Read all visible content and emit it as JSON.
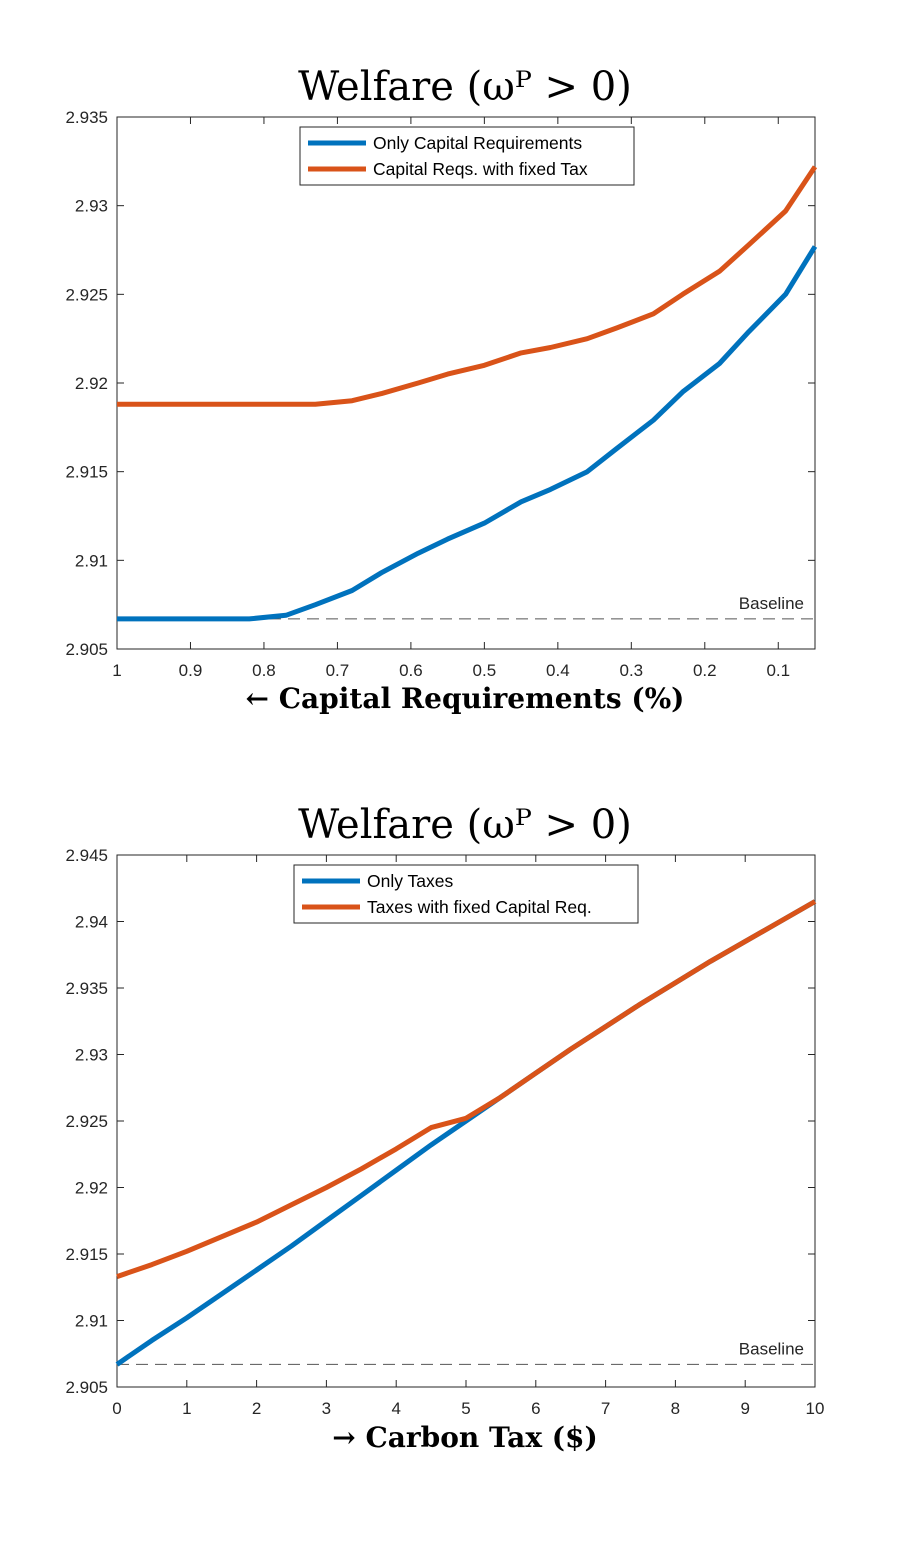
{
  "chart_data": [
    {
      "type": "line",
      "title": "Welfare (ωᴾ > 0)",
      "xlabel": "← Capital Requirements (%)",
      "ylabel": "",
      "xlim": [
        1,
        0.05
      ],
      "x_reversed": true,
      "ylim": [
        2.905,
        2.935
      ],
      "xticks": [
        1,
        0.9,
        0.8,
        0.7,
        0.6,
        0.5,
        0.4,
        0.3,
        0.2,
        0.1
      ],
      "xtick_labels": [
        "1",
        "0.9",
        "0.8",
        "0.7",
        "0.6",
        "0.5",
        "0.4",
        "0.3",
        "0.2",
        "0.1"
      ],
      "yticks": [
        2.905,
        2.91,
        2.915,
        2.92,
        2.925,
        2.93,
        2.935
      ],
      "ytick_labels": [
        "2.905",
        "2.91",
        "2.915",
        "2.92",
        "2.925",
        "2.93",
        "2.935"
      ],
      "grid": false,
      "legend": "top-center",
      "baseline": {
        "label": "Baseline",
        "value": 2.9067
      },
      "series": [
        {
          "name": "Only Capital Requirements",
          "color": "#0072BD",
          "x": [
            1,
            0.95,
            0.9,
            0.86,
            0.82,
            0.77,
            0.73,
            0.68,
            0.64,
            0.59,
            0.55,
            0.5,
            0.45,
            0.41,
            0.36,
            0.32,
            0.27,
            0.23,
            0.18,
            0.14,
            0.09,
            0.05
          ],
          "y": [
            2.9067,
            2.9067,
            2.9067,
            2.9067,
            2.9067,
            2.9069,
            2.9075,
            2.9083,
            2.9093,
            2.9104,
            2.9112,
            2.9121,
            2.9133,
            2.914,
            2.915,
            2.9163,
            2.9179,
            2.9195,
            2.9211,
            2.9229,
            2.925,
            2.9277
          ]
        },
        {
          "name": "Capital Reqs. with fixed Tax",
          "color": "#D95319",
          "x": [
            1,
            0.95,
            0.9,
            0.86,
            0.82,
            0.77,
            0.73,
            0.68,
            0.64,
            0.59,
            0.55,
            0.5,
            0.45,
            0.41,
            0.36,
            0.32,
            0.27,
            0.23,
            0.18,
            0.14,
            0.09,
            0.05
          ],
          "y": [
            2.9188,
            2.9188,
            2.9188,
            2.9188,
            2.9188,
            2.9188,
            2.9188,
            2.919,
            2.9194,
            2.92,
            2.9205,
            2.921,
            2.9217,
            2.922,
            2.9225,
            2.9231,
            2.9239,
            2.925,
            2.9263,
            2.9278,
            2.9297,
            2.9322
          ]
        }
      ]
    },
    {
      "type": "line",
      "title": "Welfare (ωᴾ > 0)",
      "xlabel": "→ Carbon Tax ($)",
      "ylabel": "",
      "xlim": [
        0,
        10
      ],
      "ylim": [
        2.905,
        2.945
      ],
      "xticks": [
        0,
        1,
        2,
        3,
        4,
        5,
        6,
        7,
        8,
        9,
        10
      ],
      "xtick_labels": [
        "0",
        "1",
        "2",
        "3",
        "4",
        "5",
        "6",
        "7",
        "8",
        "9",
        "10"
      ],
      "yticks": [
        2.905,
        2.91,
        2.915,
        2.92,
        2.925,
        2.93,
        2.935,
        2.94,
        2.945
      ],
      "ytick_labels": [
        "2.905",
        "2.91",
        "2.915",
        "2.92",
        "2.925",
        "2.93",
        "2.935",
        "2.94",
        "2.945"
      ],
      "grid": false,
      "legend": "top-center",
      "baseline": {
        "label": "Baseline",
        "value": 2.9067
      },
      "series": [
        {
          "name": "Only Taxes",
          "color": "#0072BD",
          "x": [
            0,
            0.5,
            1,
            1.5,
            2,
            2.5,
            3,
            3.5,
            4,
            4.5,
            5,
            5.5,
            6,
            6.5,
            7,
            7.5,
            8,
            8.5,
            9,
            9.5,
            10
          ],
          "y": [
            2.9067,
            2.9085,
            2.9102,
            2.912,
            2.9138,
            2.9156,
            2.9175,
            2.9194,
            2.9213,
            2.9232,
            2.925,
            2.9268,
            2.9286,
            2.9304,
            2.9321,
            2.9338,
            2.9354,
            2.937,
            2.9385,
            2.94,
            2.9415
          ]
        },
        {
          "name": "Taxes with fixed Capital Req.",
          "color": "#D95319",
          "x": [
            0,
            0.5,
            1,
            1.5,
            2,
            2.5,
            3,
            3.5,
            4,
            4.5,
            5,
            5.5,
            6,
            6.5,
            7,
            7.5,
            8,
            8.5,
            9,
            9.5,
            10
          ],
          "y": [
            2.9133,
            2.9142,
            2.9152,
            2.9163,
            2.9174,
            2.9187,
            2.92,
            2.9214,
            2.9229,
            2.9245,
            2.9252,
            2.9268,
            2.9286,
            2.9304,
            2.9321,
            2.9338,
            2.9354,
            2.937,
            2.9385,
            2.94,
            2.9415
          ]
        }
      ]
    }
  ]
}
